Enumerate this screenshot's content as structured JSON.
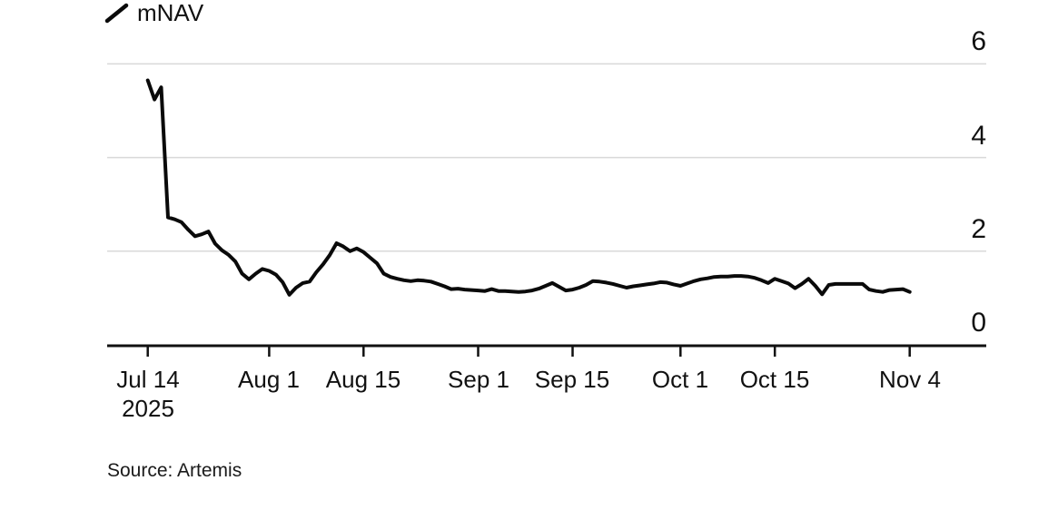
{
  "chart_data": {
    "type": "line",
    "title": "",
    "legend": {
      "label": "mNAV",
      "marker": "diagonal-line"
    },
    "source": "Source: Artemis",
    "grid": "horizontal",
    "colors": {
      "line": "#0a0a0a",
      "grid": "#d9d9d9",
      "axis": "#111111",
      "text": "#111111",
      "background": "#ffffff"
    },
    "y_axis": {
      "side": "right",
      "min": 0,
      "max": 6,
      "ticks": [
        0,
        2,
        4,
        6
      ]
    },
    "x_axis": {
      "ticks": [
        {
          "date": "2025-07-14",
          "label": "Jul 14",
          "sublabel": "2025"
        },
        {
          "date": "2025-08-01",
          "label": "Aug 1"
        },
        {
          "date": "2025-08-15",
          "label": "Aug 15"
        },
        {
          "date": "2025-09-01",
          "label": "Sep 1"
        },
        {
          "date": "2025-09-15",
          "label": "Sep 15"
        },
        {
          "date": "2025-10-01",
          "label": "Oct 1"
        },
        {
          "date": "2025-10-15",
          "label": "Oct 15"
        },
        {
          "date": "2025-11-04",
          "label": "Nov 4"
        }
      ]
    },
    "series": [
      {
        "name": "mNAV",
        "points": [
          [
            "2025-07-14",
            5.65
          ],
          [
            "2025-07-15",
            5.24
          ],
          [
            "2025-07-16",
            5.5
          ],
          [
            "2025-07-17",
            2.72
          ],
          [
            "2025-07-18",
            2.68
          ],
          [
            "2025-07-19",
            2.62
          ],
          [
            "2025-07-20",
            2.46
          ],
          [
            "2025-07-21",
            2.32
          ],
          [
            "2025-07-22",
            2.36
          ],
          [
            "2025-07-23",
            2.42
          ],
          [
            "2025-07-24",
            2.16
          ],
          [
            "2025-07-25",
            2.02
          ],
          [
            "2025-07-26",
            1.92
          ],
          [
            "2025-07-27",
            1.78
          ],
          [
            "2025-07-28",
            1.52
          ],
          [
            "2025-07-29",
            1.4
          ],
          [
            "2025-07-30",
            1.52
          ],
          [
            "2025-07-31",
            1.62
          ],
          [
            "2025-08-01",
            1.58
          ],
          [
            "2025-08-02",
            1.5
          ],
          [
            "2025-08-03",
            1.34
          ],
          [
            "2025-08-04",
            1.07
          ],
          [
            "2025-08-05",
            1.22
          ],
          [
            "2025-08-06",
            1.32
          ],
          [
            "2025-08-07",
            1.35
          ],
          [
            "2025-08-08",
            1.55
          ],
          [
            "2025-08-09",
            1.72
          ],
          [
            "2025-08-10",
            1.92
          ],
          [
            "2025-08-11",
            2.17
          ],
          [
            "2025-08-12",
            2.1
          ],
          [
            "2025-08-13",
            2.0
          ],
          [
            "2025-08-14",
            2.06
          ],
          [
            "2025-08-15",
            1.98
          ],
          [
            "2025-08-16",
            1.86
          ],
          [
            "2025-08-17",
            1.74
          ],
          [
            "2025-08-18",
            1.52
          ],
          [
            "2025-08-19",
            1.45
          ],
          [
            "2025-08-20",
            1.41
          ],
          [
            "2025-08-21",
            1.38
          ],
          [
            "2025-08-22",
            1.36
          ],
          [
            "2025-08-23",
            1.38
          ],
          [
            "2025-08-24",
            1.37
          ],
          [
            "2025-08-25",
            1.35
          ],
          [
            "2025-08-26",
            1.3
          ],
          [
            "2025-08-27",
            1.25
          ],
          [
            "2025-08-28",
            1.19
          ],
          [
            "2025-08-29",
            1.2
          ],
          [
            "2025-08-30",
            1.18
          ],
          [
            "2025-08-31",
            1.17
          ],
          [
            "2025-09-01",
            1.16
          ],
          [
            "2025-09-02",
            1.15
          ],
          [
            "2025-09-03",
            1.19
          ],
          [
            "2025-09-04",
            1.15
          ],
          [
            "2025-09-05",
            1.15
          ],
          [
            "2025-09-06",
            1.14
          ],
          [
            "2025-09-07",
            1.13
          ],
          [
            "2025-09-08",
            1.14
          ],
          [
            "2025-09-09",
            1.16
          ],
          [
            "2025-09-10",
            1.2
          ],
          [
            "2025-09-11",
            1.26
          ],
          [
            "2025-09-12",
            1.32
          ],
          [
            "2025-09-13",
            1.24
          ],
          [
            "2025-09-14",
            1.16
          ],
          [
            "2025-09-15",
            1.18
          ],
          [
            "2025-09-16",
            1.22
          ],
          [
            "2025-09-17",
            1.28
          ],
          [
            "2025-09-18",
            1.36
          ],
          [
            "2025-09-19",
            1.35
          ],
          [
            "2025-09-20",
            1.33
          ],
          [
            "2025-09-21",
            1.3
          ],
          [
            "2025-09-22",
            1.26
          ],
          [
            "2025-09-23",
            1.22
          ],
          [
            "2025-09-24",
            1.25
          ],
          [
            "2025-09-25",
            1.27
          ],
          [
            "2025-09-26",
            1.29
          ],
          [
            "2025-09-27",
            1.31
          ],
          [
            "2025-09-28",
            1.34
          ],
          [
            "2025-09-29",
            1.33
          ],
          [
            "2025-09-30",
            1.29
          ],
          [
            "2025-10-01",
            1.26
          ],
          [
            "2025-10-02",
            1.31
          ],
          [
            "2025-10-03",
            1.36
          ],
          [
            "2025-10-04",
            1.4
          ],
          [
            "2025-10-05",
            1.42
          ],
          [
            "2025-10-06",
            1.45
          ],
          [
            "2025-10-07",
            1.46
          ],
          [
            "2025-10-08",
            1.46
          ],
          [
            "2025-10-09",
            1.47
          ],
          [
            "2025-10-10",
            1.47
          ],
          [
            "2025-10-11",
            1.46
          ],
          [
            "2025-10-12",
            1.43
          ],
          [
            "2025-10-13",
            1.38
          ],
          [
            "2025-10-14",
            1.32
          ],
          [
            "2025-10-15",
            1.41
          ],
          [
            "2025-10-16",
            1.36
          ],
          [
            "2025-10-17",
            1.31
          ],
          [
            "2025-10-18",
            1.21
          ],
          [
            "2025-10-19",
            1.3
          ],
          [
            "2025-10-20",
            1.41
          ],
          [
            "2025-10-21",
            1.26
          ],
          [
            "2025-10-22",
            1.08
          ],
          [
            "2025-10-23",
            1.28
          ],
          [
            "2025-10-24",
            1.3
          ],
          [
            "2025-10-25",
            1.3
          ],
          [
            "2025-10-26",
            1.3
          ],
          [
            "2025-10-27",
            1.3
          ],
          [
            "2025-10-28",
            1.3
          ],
          [
            "2025-10-29",
            1.18
          ],
          [
            "2025-10-30",
            1.15
          ],
          [
            "2025-10-31",
            1.13
          ],
          [
            "2025-11-01",
            1.17
          ],
          [
            "2025-11-02",
            1.18
          ],
          [
            "2025-11-03",
            1.19
          ],
          [
            "2025-11-04",
            1.13
          ]
        ]
      }
    ]
  }
}
